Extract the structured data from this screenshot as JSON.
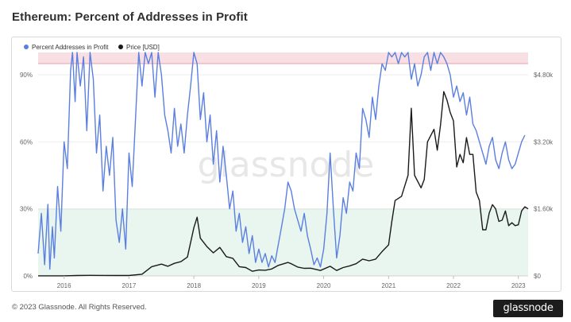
{
  "title": "Ethereum: Percent of Addresses in Profit",
  "footer": {
    "copyright": "© 2023 Glassnode. All Rights Reserved.",
    "logo_text": "glassnode"
  },
  "watermark": "glassnode",
  "chart_data": {
    "type": "line",
    "title": "Ethereum: Percent of Addresses in Profit",
    "legend_position": "top-left",
    "x_ticks": [
      "2016",
      "2017",
      "2018",
      "2019",
      "2020",
      "2021",
      "2022",
      "2023"
    ],
    "x_tick_positions": [
      2016.0,
      2017.0,
      2018.0,
      2019.0,
      2020.0,
      2021.0,
      2022.0,
      2023.0
    ],
    "xlim": [
      2015.6,
      2023.15
    ],
    "y_left": {
      "ticks": [
        "0%",
        "30%",
        "60%",
        "90%"
      ],
      "tick_values": [
        0,
        30,
        60,
        90
      ],
      "ylim": [
        0,
        100
      ]
    },
    "y_right": {
      "ticks": [
        "$0",
        "$1.60k",
        "$3.20k",
        "$4.80k"
      ],
      "tick_values": [
        0,
        1600,
        3200,
        4800
      ],
      "ylim": [
        0,
        5333
      ]
    },
    "bands": [
      {
        "name": "high-zone",
        "from": 95,
        "to": 100,
        "color": "#f7dfe3"
      },
      {
        "name": "low-zone",
        "from": 0,
        "to": 30,
        "color": "#e8f6ef"
      }
    ],
    "band_lines": [
      {
        "value": 95,
        "color": "#e8a0a8"
      },
      {
        "value": 30,
        "color": "#9fd4b6"
      }
    ],
    "series": [
      {
        "name": "Percent Addresses in Profit",
        "color": "#5b7fe0",
        "axis": "left",
        "points": [
          [
            2015.6,
            10
          ],
          [
            2015.65,
            28
          ],
          [
            2015.7,
            5
          ],
          [
            2015.75,
            32
          ],
          [
            2015.78,
            3
          ],
          [
            2015.82,
            22
          ],
          [
            2015.85,
            8
          ],
          [
            2015.9,
            40
          ],
          [
            2015.95,
            20
          ],
          [
            2016.0,
            60
          ],
          [
            2016.05,
            48
          ],
          [
            2016.1,
            92
          ],
          [
            2016.13,
            100
          ],
          [
            2016.17,
            78
          ],
          [
            2016.2,
            100
          ],
          [
            2016.25,
            85
          ],
          [
            2016.3,
            98
          ],
          [
            2016.35,
            65
          ],
          [
            2016.4,
            100
          ],
          [
            2016.45,
            88
          ],
          [
            2016.5,
            55
          ],
          [
            2016.55,
            72
          ],
          [
            2016.6,
            38
          ],
          [
            2016.65,
            58
          ],
          [
            2016.7,
            45
          ],
          [
            2016.75,
            62
          ],
          [
            2016.8,
            25
          ],
          [
            2016.85,
            15
          ],
          [
            2016.9,
            30
          ],
          [
            2016.95,
            12
          ],
          [
            2017.0,
            55
          ],
          [
            2017.05,
            40
          ],
          [
            2017.1,
            70
          ],
          [
            2017.15,
            100
          ],
          [
            2017.2,
            85
          ],
          [
            2017.25,
            100
          ],
          [
            2017.3,
            95
          ],
          [
            2017.35,
            100
          ],
          [
            2017.4,
            80
          ],
          [
            2017.45,
            100
          ],
          [
            2017.5,
            90
          ],
          [
            2017.55,
            72
          ],
          [
            2017.6,
            65
          ],
          [
            2017.65,
            55
          ],
          [
            2017.7,
            75
          ],
          [
            2017.75,
            58
          ],
          [
            2017.8,
            68
          ],
          [
            2017.85,
            55
          ],
          [
            2017.9,
            72
          ],
          [
            2017.95,
            85
          ],
          [
            2018.0,
            100
          ],
          [
            2018.05,
            95
          ],
          [
            2018.1,
            70
          ],
          [
            2018.15,
            82
          ],
          [
            2018.2,
            60
          ],
          [
            2018.25,
            72
          ],
          [
            2018.3,
            50
          ],
          [
            2018.35,
            65
          ],
          [
            2018.4,
            42
          ],
          [
            2018.45,
            58
          ],
          [
            2018.5,
            45
          ],
          [
            2018.55,
            30
          ],
          [
            2018.6,
            38
          ],
          [
            2018.65,
            20
          ],
          [
            2018.7,
            28
          ],
          [
            2018.75,
            15
          ],
          [
            2018.8,
            22
          ],
          [
            2018.85,
            10
          ],
          [
            2018.9,
            18
          ],
          [
            2018.95,
            6
          ],
          [
            2019.0,
            12
          ],
          [
            2019.05,
            6
          ],
          [
            2019.1,
            10
          ],
          [
            2019.15,
            4
          ],
          [
            2019.2,
            9
          ],
          [
            2019.25,
            6
          ],
          [
            2019.3,
            14
          ],
          [
            2019.35,
            22
          ],
          [
            2019.4,
            30
          ],
          [
            2019.45,
            42
          ],
          [
            2019.5,
            38
          ],
          [
            2019.55,
            30
          ],
          [
            2019.6,
            25
          ],
          [
            2019.65,
            20
          ],
          [
            2019.7,
            28
          ],
          [
            2019.75,
            18
          ],
          [
            2019.8,
            12
          ],
          [
            2019.85,
            5
          ],
          [
            2019.9,
            8
          ],
          [
            2019.95,
            4
          ],
          [
            2020.0,
            12
          ],
          [
            2020.05,
            28
          ],
          [
            2020.1,
            55
          ],
          [
            2020.15,
            30
          ],
          [
            2020.2,
            8
          ],
          [
            2020.25,
            18
          ],
          [
            2020.3,
            35
          ],
          [
            2020.35,
            28
          ],
          [
            2020.4,
            42
          ],
          [
            2020.45,
            38
          ],
          [
            2020.5,
            55
          ],
          [
            2020.55,
            48
          ],
          [
            2020.6,
            75
          ],
          [
            2020.65,
            70
          ],
          [
            2020.7,
            62
          ],
          [
            2020.75,
            80
          ],
          [
            2020.8,
            70
          ],
          [
            2020.85,
            85
          ],
          [
            2020.9,
            95
          ],
          [
            2020.95,
            92
          ],
          [
            2021.0,
            100
          ],
          [
            2021.05,
            98
          ],
          [
            2021.1,
            100
          ],
          [
            2021.15,
            95
          ],
          [
            2021.2,
            100
          ],
          [
            2021.25,
            98
          ],
          [
            2021.3,
            100
          ],
          [
            2021.35,
            88
          ],
          [
            2021.4,
            95
          ],
          [
            2021.45,
            85
          ],
          [
            2021.5,
            90
          ],
          [
            2021.55,
            98
          ],
          [
            2021.6,
            100
          ],
          [
            2021.65,
            92
          ],
          [
            2021.7,
            100
          ],
          [
            2021.75,
            95
          ],
          [
            2021.8,
            100
          ],
          [
            2021.85,
            98
          ],
          [
            2021.9,
            95
          ],
          [
            2021.95,
            90
          ],
          [
            2022.0,
            80
          ],
          [
            2022.05,
            85
          ],
          [
            2022.1,
            78
          ],
          [
            2022.15,
            82
          ],
          [
            2022.2,
            72
          ],
          [
            2022.25,
            80
          ],
          [
            2022.3,
            68
          ],
          [
            2022.35,
            65
          ],
          [
            2022.4,
            60
          ],
          [
            2022.45,
            55
          ],
          [
            2022.5,
            50
          ],
          [
            2022.55,
            58
          ],
          [
            2022.6,
            62
          ],
          [
            2022.65,
            52
          ],
          [
            2022.7,
            48
          ],
          [
            2022.75,
            55
          ],
          [
            2022.8,
            60
          ],
          [
            2022.85,
            52
          ],
          [
            2022.9,
            48
          ],
          [
            2022.95,
            50
          ],
          [
            2023.0,
            55
          ],
          [
            2023.05,
            60
          ],
          [
            2023.1,
            63
          ]
        ]
      },
      {
        "name": "Price [USD]",
        "color": "#1a1a1a",
        "axis": "right",
        "points": [
          [
            2015.6,
            1
          ],
          [
            2015.8,
            1
          ],
          [
            2016.0,
            1
          ],
          [
            2016.2,
            10
          ],
          [
            2016.4,
            14
          ],
          [
            2016.6,
            11
          ],
          [
            2016.8,
            10
          ],
          [
            2017.0,
            9
          ],
          [
            2017.2,
            40
          ],
          [
            2017.35,
            220
          ],
          [
            2017.5,
            280
          ],
          [
            2017.6,
            230
          ],
          [
            2017.7,
            300
          ],
          [
            2017.8,
            340
          ],
          [
            2017.9,
            450
          ],
          [
            2018.0,
            1150
          ],
          [
            2018.05,
            1400
          ],
          [
            2018.1,
            900
          ],
          [
            2018.2,
            700
          ],
          [
            2018.3,
            550
          ],
          [
            2018.4,
            680
          ],
          [
            2018.5,
            460
          ],
          [
            2018.6,
            420
          ],
          [
            2018.7,
            220
          ],
          [
            2018.8,
            200
          ],
          [
            2018.9,
            110
          ],
          [
            2019.0,
            140
          ],
          [
            2019.1,
            135
          ],
          [
            2019.2,
            165
          ],
          [
            2019.3,
            250
          ],
          [
            2019.45,
            320
          ],
          [
            2019.5,
            290
          ],
          [
            2019.6,
            210
          ],
          [
            2019.7,
            180
          ],
          [
            2019.8,
            185
          ],
          [
            2019.95,
            130
          ],
          [
            2020.1,
            230
          ],
          [
            2020.2,
            130
          ],
          [
            2020.3,
            200
          ],
          [
            2020.4,
            240
          ],
          [
            2020.5,
            290
          ],
          [
            2020.6,
            400
          ],
          [
            2020.7,
            360
          ],
          [
            2020.8,
            400
          ],
          [
            2020.9,
            580
          ],
          [
            2021.0,
            740
          ],
          [
            2021.05,
            1300
          ],
          [
            2021.1,
            1800
          ],
          [
            2021.2,
            1900
          ],
          [
            2021.3,
            2400
          ],
          [
            2021.35,
            4000
          ],
          [
            2021.4,
            2400
          ],
          [
            2021.5,
            2100
          ],
          [
            2021.55,
            2300
          ],
          [
            2021.6,
            3200
          ],
          [
            2021.7,
            3500
          ],
          [
            2021.75,
            3000
          ],
          [
            2021.8,
            3600
          ],
          [
            2021.85,
            4400
          ],
          [
            2021.9,
            4200
          ],
          [
            2021.95,
            3900
          ],
          [
            2022.0,
            3700
          ],
          [
            2022.05,
            2600
          ],
          [
            2022.1,
            2900
          ],
          [
            2022.15,
            2700
          ],
          [
            2022.2,
            3300
          ],
          [
            2022.25,
            2900
          ],
          [
            2022.3,
            2900
          ],
          [
            2022.35,
            2000
          ],
          [
            2022.4,
            1800
          ],
          [
            2022.45,
            1100
          ],
          [
            2022.5,
            1100
          ],
          [
            2022.55,
            1500
          ],
          [
            2022.6,
            1700
          ],
          [
            2022.65,
            1600
          ],
          [
            2022.7,
            1300
          ],
          [
            2022.75,
            1330
          ],
          [
            2022.8,
            1550
          ],
          [
            2022.85,
            1200
          ],
          [
            2022.9,
            1270
          ],
          [
            2022.95,
            1200
          ],
          [
            2023.0,
            1220
          ],
          [
            2023.05,
            1550
          ],
          [
            2023.1,
            1650
          ],
          [
            2023.15,
            1600
          ]
        ]
      }
    ]
  }
}
